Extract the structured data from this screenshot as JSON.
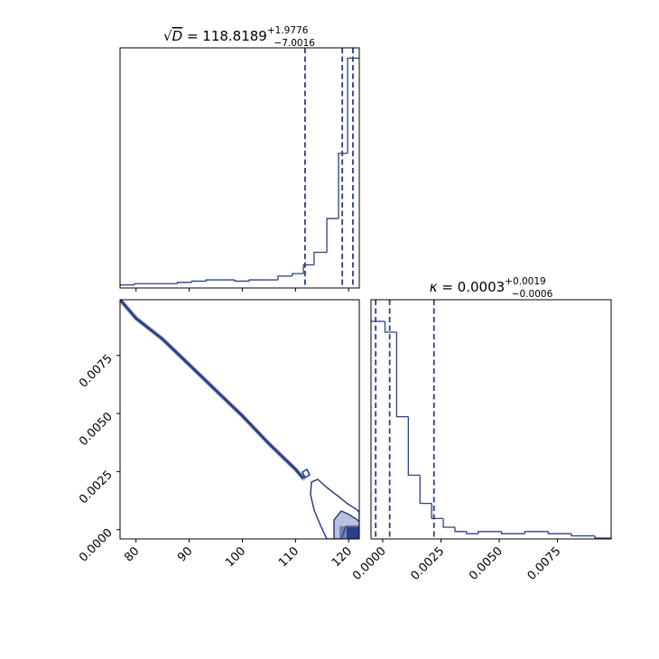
{
  "colors": {
    "line": "#2c4083",
    "fill_light": "#b9c1dc",
    "fill_mid": "#7383b8",
    "fill_dark": "#2c4083",
    "axis": "#000000"
  },
  "chart_data": [
    {
      "type": "histogram",
      "panel": "top-left",
      "title": {
        "symbol": "D",
        "equals": " = ",
        "value": "118.8189",
        "upper": "+1.9776",
        "lower": "−7.0016"
      },
      "xlim": [
        77,
        122
      ],
      "bins": [
        [
          77,
          79.7,
          1
        ],
        [
          79.7,
          82.4,
          2
        ],
        [
          82.4,
          85.1,
          2
        ],
        [
          85.1,
          87.8,
          2
        ],
        [
          87.8,
          90.5,
          3
        ],
        [
          90.5,
          93.2,
          4
        ],
        [
          93.2,
          95.9,
          5
        ],
        [
          95.9,
          98.6,
          5
        ],
        [
          98.6,
          101.3,
          4
        ],
        [
          101.3,
          104,
          5
        ],
        [
          104,
          106.7,
          5
        ],
        [
          106.7,
          109.4,
          8
        ],
        [
          109.4,
          111.5,
          10
        ],
        [
          111.5,
          113.5,
          17
        ],
        [
          113.5,
          115.9,
          27
        ],
        [
          115.9,
          118.1,
          54
        ],
        [
          118.1,
          119.8,
          106
        ],
        [
          119.8,
          121,
          182
        ],
        [
          121,
          122,
          182
        ]
      ],
      "quantile_lines": [
        111.8,
        118.8,
        120.8
      ]
    },
    {
      "type": "contour",
      "panel": "bottom-left",
      "xlim": [
        77,
        122
      ],
      "ylim": [
        -0.0004,
        0.0099
      ],
      "xticks": [
        "80",
        "90",
        "100",
        "110",
        "120"
      ],
      "xtick_values": [
        80,
        90,
        100,
        110,
        120
      ],
      "yticks": [
        "0.0000",
        "0.0025",
        "0.0050",
        "0.0075"
      ],
      "ytick_values": [
        0,
        0.0025,
        0.005,
        0.0075
      ],
      "curve_x": [
        77,
        80,
        85,
        90,
        95,
        100,
        105,
        110,
        111.5
      ],
      "curve_y": [
        0.0099,
        0.0091,
        0.0082,
        0.0071,
        0.006,
        0.0049,
        0.0037,
        0.0026,
        0.0022
      ]
    },
    {
      "type": "histogram",
      "panel": "bottom-right",
      "title": {
        "symbol": "κ",
        "equals": " = ",
        "value": "0.0003",
        "upper": "+0.0019",
        "lower": "−0.0006"
      },
      "xlim": [
        -0.0005,
        0.0098
      ],
      "xticks": [
        "0.0000",
        "0.0025",
        "0.0050",
        "0.0075"
      ],
      "xtick_values": [
        0,
        0.0025,
        0.005,
        0.0075
      ],
      "bins": [
        [
          -0.0005,
          0.0001,
          100
        ],
        [
          0.0001,
          0.0006,
          95
        ],
        [
          0.0006,
          0.0011,
          56
        ],
        [
          0.0011,
          0.0016,
          29
        ],
        [
          0.0016,
          0.0021,
          16
        ],
        [
          0.0021,
          0.0026,
          9
        ],
        [
          0.0026,
          0.0031,
          5
        ],
        [
          0.0031,
          0.0036,
          3
        ],
        [
          0.0036,
          0.0041,
          2
        ],
        [
          0.0041,
          0.0051,
          3
        ],
        [
          0.0051,
          0.0061,
          2
        ],
        [
          0.0061,
          0.0071,
          3
        ],
        [
          0.0071,
          0.0081,
          2
        ],
        [
          0.0081,
          0.0091,
          1
        ],
        [
          0.0091,
          0.0098,
          0
        ]
      ],
      "quantile_lines": [
        -0.0003,
        0.0003,
        0.0022
      ]
    }
  ]
}
